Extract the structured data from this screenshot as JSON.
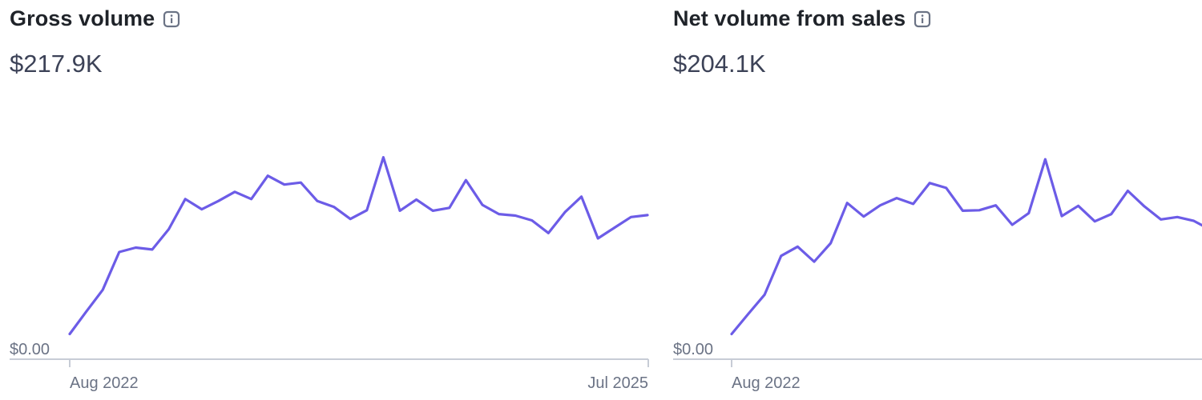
{
  "panels": [
    {
      "title": "Gross volume",
      "amount": "$217.9K",
      "info_icon": "info-icon"
    },
    {
      "title": "Net volume from sales",
      "amount": "$204.1K",
      "info_icon": "info-icon"
    }
  ],
  "colors": {
    "line": "#6c5ce7",
    "axis": "#c7ccd6",
    "text_dark": "#1f2329",
    "text_muted": "#6b7385"
  },
  "chart_data": [
    {
      "type": "line",
      "series": [
        {
          "values": [
            5.2,
            9.8,
            14.3,
            22.1,
            23.0,
            22.6,
            26.8,
            33.0,
            30.9,
            32.6,
            34.5,
            33.0,
            37.8,
            36.0,
            36.4,
            32.6,
            31.4,
            28.9,
            30.7,
            41.6,
            30.6,
            32.9,
            30.6,
            31.2,
            36.9,
            31.8,
            29.9,
            29.6,
            28.6,
            26.0,
            30.3,
            33.5,
            24.9,
            27.1,
            29.3,
            29.7
          ]
        }
      ],
      "x_tick_labels": [
        "Aug 2022",
        "Jul 2025"
      ],
      "y_tick_labels": [
        "$0.00"
      ],
      "ylim": [
        0,
        46
      ],
      "grid": false
    },
    {
      "type": "line",
      "series": [
        {
          "values": [
            5.2,
            9.3,
            13.3,
            21.3,
            23.2,
            20.1,
            23.9,
            32.2,
            29.4,
            31.7,
            33.2,
            32.0,
            36.3,
            35.3,
            30.6,
            30.7,
            31.7,
            27.7,
            30.1,
            41.2,
            29.5,
            31.6,
            28.4,
            29.9,
            34.7,
            31.5,
            28.8,
            29.3,
            28.5,
            26.7
          ]
        }
      ],
      "x_tick_labels": [
        "Aug 2022"
      ],
      "y_tick_labels": [
        "$0.00"
      ],
      "ylim": [
        0,
        46
      ],
      "grid": false
    }
  ]
}
